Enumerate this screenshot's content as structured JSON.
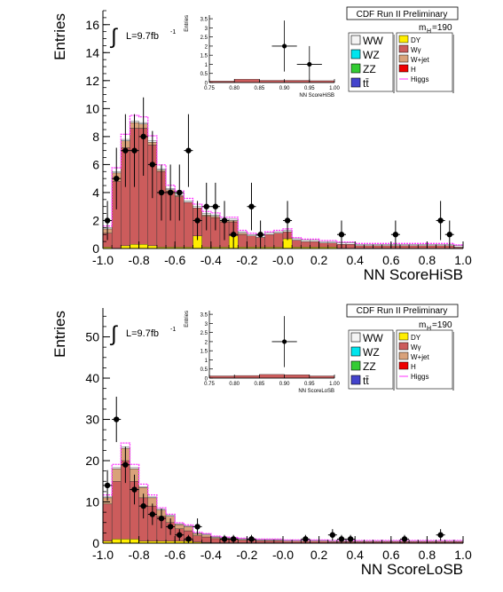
{
  "colors": {
    "WW": "#f4f4f4",
    "WZ": "#00e5ee",
    "ZZ": "#33cc33",
    "tt": "#4444cc",
    "DY": "#ffee00",
    "Wgamma": "#cc5c5c",
    "Wjet": "#d9a27a",
    "H": "#ee0000",
    "Higgs": "#ff33ff",
    "data": "#000000",
    "frame": "#000000"
  },
  "chart_data": [
    {
      "type": "histogram",
      "title": "CDF Run II Preliminary",
      "xlabel": "NN ScoreHiSB",
      "ylabel": "Entries",
      "lumi_label": "L=9.7fb",
      "lumi_sup": "-1",
      "mass_label": "m",
      "mass_sub": "H",
      "mass_value": "=190",
      "xlim": [
        -1.0,
        1.0
      ],
      "ylim": [
        0,
        17
      ],
      "yticks": [
        0,
        2,
        4,
        6,
        8,
        10,
        12,
        14,
        16
      ],
      "xticks": [
        -1.0,
        -0.8,
        -0.6,
        -0.4,
        -0.2,
        -0.0,
        0.2,
        0.4,
        0.6,
        0.8,
        1.0
      ],
      "xtick_labels": [
        "-1.0",
        "-0.8",
        "-0.6",
        "-0.4",
        "-0.2",
        "-0.0",
        "0.2",
        "0.4",
        "0.6",
        "0.8",
        "1.0"
      ],
      "bin_edges": [
        -1.0,
        -0.95,
        -0.9,
        -0.85,
        -0.8,
        -0.75,
        -0.7,
        -0.65,
        -0.6,
        -0.55,
        -0.5,
        -0.45,
        -0.4,
        -0.35,
        -0.3,
        -0.25,
        -0.2,
        -0.15,
        -0.1,
        -0.05,
        0.0,
        0.05,
        0.1,
        0.15,
        0.2,
        0.25,
        0.3,
        0.35,
        0.4,
        0.45,
        0.5,
        0.55,
        0.6,
        0.65,
        0.7,
        0.75,
        0.8,
        0.85,
        0.9,
        0.95,
        1.0
      ],
      "series": [
        {
          "name": "DY",
          "values": [
            0.1,
            0.0,
            0.2,
            0.3,
            0.3,
            0.2,
            0.1,
            0.1,
            0.1,
            0.1,
            0.9,
            0.1,
            0.1,
            0.1,
            0.9,
            0.1,
            0.1,
            0.1,
            0.1,
            0.1,
            0.7,
            0.1,
            0.1,
            0.1,
            0.1,
            0.1,
            0.0,
            0.0,
            0.0,
            0.0,
            0.0,
            0.0,
            0.0,
            0.0,
            0.0,
            0.0,
            0.0,
            0.0,
            0.0,
            0.0
          ]
        },
        {
          "name": "Wγ",
          "values": [
            1.0,
            4.8,
            7.0,
            8.3,
            8.3,
            7.2,
            5.4,
            4.0,
            3.6,
            3.2,
            2.0,
            2.2,
            2.1,
            1.8,
            1.0,
            0.9,
            0.8,
            0.7,
            0.9,
            1.0,
            0.5,
            0.5,
            0.4,
            0.4,
            0.3,
            0.3,
            0.3,
            0.3,
            0.2,
            0.2,
            0.2,
            0.2,
            0.2,
            0.2,
            0.2,
            0.2,
            0.2,
            0.2,
            0.2,
            0.1
          ]
        },
        {
          "name": "W+jet",
          "values": [
            0.3,
            0.6,
            0.5,
            0.4,
            0.3,
            0.2,
            0.1,
            0.1,
            0.1,
            0.0,
            0.0,
            0.1,
            0.1,
            0.1,
            0.1,
            0.1,
            0.0,
            0.0,
            0.0,
            0.0,
            0.0,
            0.0,
            0.0,
            0.0,
            0.0,
            0.0,
            0.0,
            0.0,
            0.0,
            0.0,
            0.0,
            0.0,
            0.0,
            0.0,
            0.0,
            0.0,
            0.0,
            0.0,
            0.0,
            0.0
          ]
        },
        {
          "name": "WW",
          "values": [
            0.1,
            0.1,
            0.1,
            0.1,
            0.1,
            0.1,
            0.1,
            0.1,
            0.1,
            0.1,
            0.1,
            0.1,
            0.1,
            0.1,
            0.1,
            0.1,
            0.1,
            0.1,
            0.1,
            0.1,
            0.1,
            0.1,
            0.1,
            0.1,
            0.1,
            0.1,
            0.1,
            0.1,
            0.1,
            0.1,
            0.1,
            0.1,
            0.1,
            0.1,
            0.1,
            0.1,
            0.1,
            0.1,
            0.1,
            0.1
          ]
        }
      ],
      "data_points": [
        {
          "x": -0.975,
          "y": 2,
          "err": 1.4
        },
        {
          "x": -0.925,
          "y": 5,
          "err": 2.2
        },
        {
          "x": -0.875,
          "y": 7,
          "err": 2.6
        },
        {
          "x": -0.825,
          "y": 7,
          "err": 2.6
        },
        {
          "x": -0.775,
          "y": 8,
          "err": 2.8
        },
        {
          "x": -0.725,
          "y": 6,
          "err": 2.4
        },
        {
          "x": -0.675,
          "y": 4,
          "err": 2.0
        },
        {
          "x": -0.625,
          "y": 4,
          "err": 2.0
        },
        {
          "x": -0.575,
          "y": 4,
          "err": 2.0
        },
        {
          "x": -0.525,
          "y": 7,
          "err": 2.6
        },
        {
          "x": -0.475,
          "y": 2,
          "err": 1.4
        },
        {
          "x": -0.425,
          "y": 3,
          "err": 1.7
        },
        {
          "x": -0.375,
          "y": 3,
          "err": 1.7
        },
        {
          "x": -0.325,
          "y": 2,
          "err": 1.4
        },
        {
          "x": -0.275,
          "y": 1,
          "err": 1.0
        },
        {
          "x": -0.175,
          "y": 3,
          "err": 1.7
        },
        {
          "x": -0.125,
          "y": 1,
          "err": 1.0
        },
        {
          "x": 0.025,
          "y": 2,
          "err": 1.4
        },
        {
          "x": 0.325,
          "y": 1,
          "err": 1.0
        },
        {
          "x": 0.625,
          "y": 1,
          "err": 1.0
        },
        {
          "x": 0.875,
          "y": 2,
          "err": 1.4
        },
        {
          "x": 0.925,
          "y": 1,
          "err": 1.0
        }
      ],
      "inset": {
        "xlabel": "NN ScoreHiSB",
        "ylabel": "Entries",
        "xlim": [
          0.75,
          1.0
        ],
        "ylim": [
          0,
          3.7
        ],
        "yticks": [
          0,
          0.5,
          1,
          1.5,
          2,
          2.5,
          3,
          3.5
        ],
        "ytick_labels": [
          "0",
          "0.5",
          "1",
          "1.5",
          "2",
          "2.5",
          "3",
          "3.5"
        ],
        "xticks": [
          0.75,
          0.8,
          0.85,
          0.9,
          0.95,
          1.0
        ],
        "xtick_labels": [
          "0.75",
          "0.80",
          "0.85",
          "0.90",
          "0.95",
          "1.00"
        ],
        "hist_values": [
          0.08,
          0.18,
          0.12,
          0.12,
          0.1
        ],
        "data_points": [
          {
            "x": 0.9,
            "y": 2,
            "err": 1.4
          },
          {
            "x": 0.95,
            "y": 1,
            "err": 1.0
          }
        ]
      }
    },
    {
      "type": "histogram",
      "title": "CDF Run II Preliminary",
      "xlabel": "NN ScoreLoSB",
      "ylabel": "Entries",
      "lumi_label": "L=9.7fb",
      "lumi_sup": "-1",
      "mass_label": "m",
      "mass_sub": "H",
      "mass_value": "=190",
      "xlim": [
        -1.0,
        1.0
      ],
      "ylim": [
        0,
        57
      ],
      "yticks": [
        0,
        10,
        20,
        30,
        40,
        50
      ],
      "xticks": [
        -1.0,
        -0.8,
        -0.6,
        -0.4,
        -0.2,
        -0.0,
        0.2,
        0.4,
        0.6,
        0.8,
        1.0
      ],
      "xtick_labels": [
        "-1.0",
        "-0.8",
        "-0.6",
        "-0.4",
        "-0.2",
        "-0.0",
        "0.2",
        "0.4",
        "0.6",
        "0.8",
        "1.0"
      ],
      "bin_edges": [
        -1.0,
        -0.95,
        -0.9,
        -0.85,
        -0.8,
        -0.75,
        -0.7,
        -0.65,
        -0.6,
        -0.55,
        -0.5,
        -0.45,
        -0.4,
        -0.35,
        -0.3,
        -0.25,
        -0.2,
        -0.15,
        -0.1,
        -0.05,
        0.0,
        0.05,
        0.1,
        0.15,
        0.2,
        0.25,
        0.3,
        0.35,
        0.4,
        0.45,
        0.5,
        0.55,
        0.6,
        0.65,
        0.7,
        0.75,
        0.8,
        0.85,
        0.9,
        0.95,
        1.0
      ],
      "series": [
        {
          "name": "DY",
          "values": [
            0.5,
            1.0,
            1.0,
            1.0,
            0.5,
            0.5,
            0.5,
            0.5,
            0.5,
            0.5,
            0.3,
            0.2,
            0.1,
            0.1,
            0.1,
            0.1,
            0.1,
            0.1,
            0.1,
            0.1,
            0.1,
            0.1,
            0.1,
            0.1,
            0.1,
            0.1,
            0.1,
            0.1,
            0.1,
            0.1,
            0.1,
            0.1,
            0.1,
            0.1,
            0.1,
            0.1,
            0.1,
            0.1,
            0.1,
            0.1
          ]
        },
        {
          "name": "Wγ",
          "values": [
            9.0,
            14.0,
            19.0,
            14.0,
            10.5,
            8.5,
            6.0,
            4.5,
            3.0,
            2.5,
            1.5,
            1.3,
            1.0,
            0.8,
            0.8,
            0.6,
            0.6,
            0.5,
            0.5,
            0.5,
            0.4,
            0.4,
            0.4,
            0.4,
            0.4,
            0.3,
            0.3,
            0.3,
            0.3,
            0.3,
            0.3,
            0.3,
            0.3,
            0.3,
            0.3,
            0.3,
            0.3,
            0.3,
            0.3,
            0.3
          ]
        },
        {
          "name": "W+jet",
          "values": [
            1.5,
            3.0,
            3.0,
            3.0,
            2.5,
            2.0,
            1.5,
            1.5,
            1.0,
            1.0,
            0.5,
            0.5,
            0.3,
            0.3,
            0.2,
            0.2,
            0.1,
            0.1,
            0.1,
            0.1,
            0.0,
            0.0,
            0.0,
            0.0,
            0.0,
            0.0,
            0.0,
            0.0,
            0.0,
            0.0,
            0.0,
            0.0,
            0.0,
            0.0,
            0.0,
            0.0,
            0.0,
            0.0,
            0.0,
            0.0
          ]
        },
        {
          "name": "WW",
          "values": [
            0.2,
            0.3,
            0.3,
            0.3,
            0.2,
            0.2,
            0.2,
            0.2,
            0.2,
            0.2,
            0.2,
            0.2,
            0.2,
            0.2,
            0.2,
            0.2,
            0.2,
            0.2,
            0.2,
            0.2,
            0.2,
            0.2,
            0.2,
            0.2,
            0.2,
            0.2,
            0.2,
            0.2,
            0.2,
            0.2,
            0.2,
            0.2,
            0.2,
            0.2,
            0.2,
            0.2,
            0.2,
            0.2,
            0.2,
            0.2
          ]
        }
      ],
      "data_points": [
        {
          "x": -0.975,
          "y": 14,
          "err": 3.7
        },
        {
          "x": -0.925,
          "y": 30,
          "err": 5.5
        },
        {
          "x": -0.875,
          "y": 19,
          "err": 4.4
        },
        {
          "x": -0.825,
          "y": 13,
          "err": 3.6
        },
        {
          "x": -0.775,
          "y": 9,
          "err": 3.0
        },
        {
          "x": -0.725,
          "y": 7,
          "err": 2.6
        },
        {
          "x": -0.675,
          "y": 6,
          "err": 2.4
        },
        {
          "x": -0.625,
          "y": 4,
          "err": 2.0
        },
        {
          "x": -0.575,
          "y": 2,
          "err": 1.4
        },
        {
          "x": -0.525,
          "y": 1,
          "err": 1.0
        },
        {
          "x": -0.475,
          "y": 4,
          "err": 2.0
        },
        {
          "x": -0.325,
          "y": 1,
          "err": 1.0
        },
        {
          "x": -0.275,
          "y": 1,
          "err": 1.0
        },
        {
          "x": -0.175,
          "y": 1,
          "err": 1.0
        },
        {
          "x": 0.125,
          "y": 1,
          "err": 1.0
        },
        {
          "x": 0.275,
          "y": 2,
          "err": 1.4
        },
        {
          "x": 0.325,
          "y": 1,
          "err": 1.0
        },
        {
          "x": 0.375,
          "y": 1,
          "err": 1.0
        },
        {
          "x": 0.675,
          "y": 1,
          "err": 1.0
        },
        {
          "x": 0.875,
          "y": 2,
          "err": 1.4
        }
      ],
      "inset": {
        "xlabel": "NN ScoreLoSB",
        "ylabel": "Entries",
        "xlim": [
          0.75,
          1.0
        ],
        "ylim": [
          0,
          3.7
        ],
        "yticks": [
          0,
          0.5,
          1,
          1.5,
          2,
          2.5,
          3,
          3.5
        ],
        "ytick_labels": [
          "0",
          "0.5",
          "1",
          "1.5",
          "2",
          "2.5",
          "3",
          "3.5"
        ],
        "xticks": [
          0.75,
          0.8,
          0.85,
          0.9,
          0.95,
          1.0
        ],
        "xtick_labels": [
          "0.75",
          "0.80",
          "0.85",
          "0.90",
          "0.95",
          "1.00"
        ],
        "hist_values": [
          0.12,
          0.14,
          0.2,
          0.18,
          0.12
        ],
        "data_points": [
          {
            "x": 0.9,
            "y": 2,
            "err": 1.4
          }
        ]
      }
    }
  ],
  "legend": {
    "left": [
      {
        "label": "WW",
        "color_key": "WW"
      },
      {
        "label": "WZ",
        "color_key": "WZ"
      },
      {
        "label": "ZZ",
        "color_key": "ZZ"
      },
      {
        "label": "tt̄",
        "color_key": "tt"
      }
    ],
    "right": [
      {
        "label": "DY",
        "color_key": "DY"
      },
      {
        "label": "Wγ",
        "color_key": "Wgamma"
      },
      {
        "label": "W+jet",
        "color_key": "Wjet"
      },
      {
        "label": "H",
        "color_key": "H"
      },
      {
        "label": "Higgs",
        "color_key": "Higgs"
      }
    ]
  }
}
